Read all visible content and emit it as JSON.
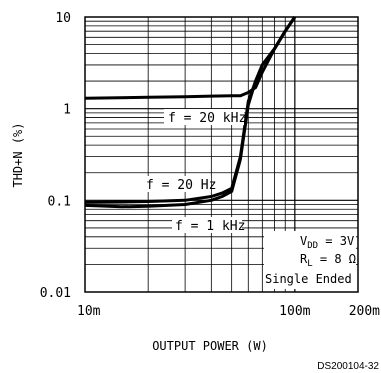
{
  "chart_data": {
    "type": "line",
    "ylabel": "THD+N (%)",
    "xlabel": "OUTPUT POWER (W)",
    "xscale": "log",
    "yscale": "log",
    "xlim": [
      0.01,
      0.2
    ],
    "ylim": [
      0.01,
      10
    ],
    "grid": true,
    "x_ticks": [
      {
        "value": 0.01,
        "label": "10m"
      },
      {
        "value": 0.1,
        "label": "100m"
      },
      {
        "value": 0.2,
        "label": "200m"
      }
    ],
    "y_ticks": [
      {
        "value": 10,
        "label": "10"
      },
      {
        "value": 1,
        "label": "1"
      },
      {
        "value": 0.1,
        "label": "0.1"
      },
      {
        "value": 0.01,
        "label": "0.01"
      }
    ],
    "series": [
      {
        "name": "f = 20 kHz",
        "x": [
          0.01,
          0.02,
          0.03,
          0.04,
          0.05,
          0.055,
          0.06,
          0.065,
          0.07,
          0.08,
          0.09,
          0.1
        ],
        "y": [
          1.3,
          1.33,
          1.35,
          1.37,
          1.38,
          1.38,
          1.5,
          1.7,
          2.5,
          4.5,
          7.0,
          10.0
        ]
      },
      {
        "name": "f = 20 Hz",
        "x": [
          0.01,
          0.015,
          0.02,
          0.03,
          0.04,
          0.045,
          0.05,
          0.055,
          0.06,
          0.065,
          0.07,
          0.08,
          0.09,
          0.1
        ],
        "y": [
          0.095,
          0.096,
          0.097,
          0.1,
          0.11,
          0.12,
          0.135,
          0.3,
          1.2,
          2.0,
          3.0,
          4.5,
          7.0,
          10.0
        ]
      },
      {
        "name": "f = 1 kHz",
        "x": [
          0.01,
          0.015,
          0.02,
          0.03,
          0.04,
          0.045,
          0.05,
          0.055,
          0.06,
          0.065,
          0.07,
          0.08,
          0.09,
          0.1
        ],
        "y": [
          0.088,
          0.085,
          0.086,
          0.09,
          0.1,
          0.11,
          0.125,
          0.28,
          1.1,
          2.0,
          3.0,
          4.5,
          7.0,
          10.0
        ]
      }
    ],
    "annotations": [
      "VDD = 3V",
      "RL = 8 Ω",
      "Single Ended"
    ],
    "footer": "DS200104-32"
  },
  "labels": {
    "y_axis_title": "THD+N (%)",
    "x_axis_title": "OUTPUT POWER (W)",
    "series_20khz": "f = 20 kHz",
    "series_20hz": "f = 20 Hz",
    "series_1khz": "f = 1 kHz",
    "vdd_main": "V",
    "vdd_sub": "DD",
    "vdd_value": " = 3V",
    "rl_main": "R",
    "rl_sub": "L",
    "rl_value": " = 8 Ω",
    "mode": "Single Ended",
    "footer": "DS200104-32"
  }
}
